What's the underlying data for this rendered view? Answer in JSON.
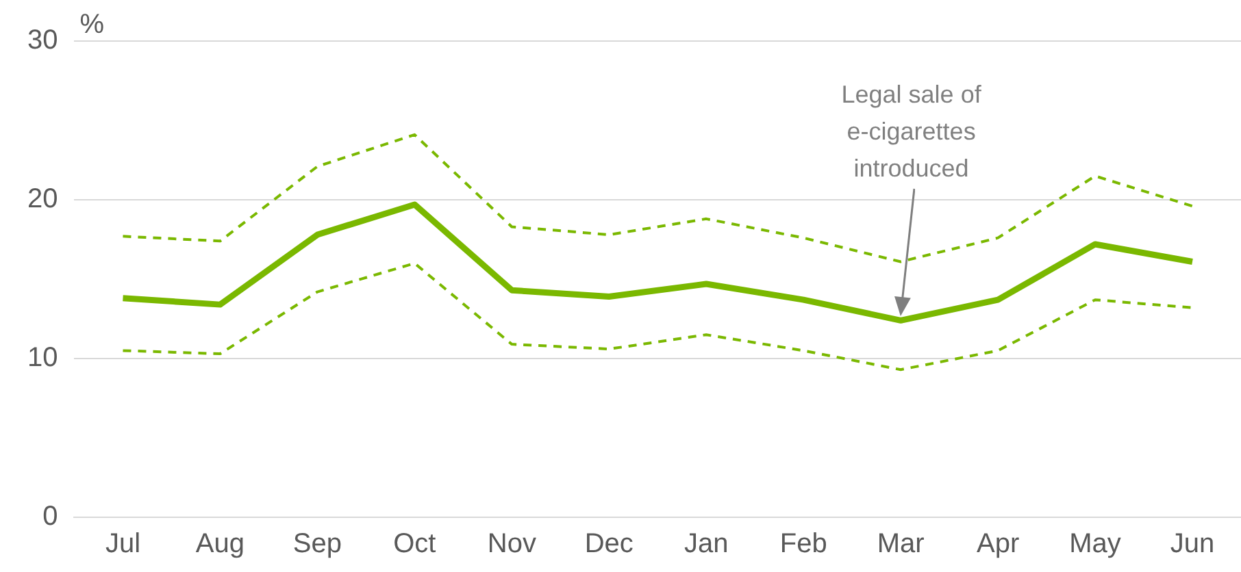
{
  "chart_data": {
    "type": "line",
    "ylabel": "%",
    "categories": [
      "Jul",
      "Aug",
      "Sep",
      "Oct",
      "Nov",
      "Dec",
      "Jan",
      "Feb",
      "Mar",
      "Apr",
      "May",
      "Jun"
    ],
    "series": [
      {
        "color": "#7ab800",
        "values": [
          13.8,
          13.4,
          17.8,
          19.7,
          14.3,
          13.9,
          14.7,
          13.7,
          12.4,
          13.7,
          17.2,
          16.1
        ]
      },
      {
        "color": "#7ab800",
        "line_style": "dashed",
        "values": [
          17.7,
          17.4,
          22.1,
          24.1,
          18.3,
          17.8,
          18.8,
          17.6,
          16.1,
          17.6,
          21.5,
          19.6
        ]
      },
      {
        "color": "#7ab800",
        "line_style": "dashed",
        "values": [
          10.5,
          10.3,
          14.2,
          16.0,
          10.9,
          10.6,
          11.5,
          10.5,
          9.3,
          10.5,
          13.7,
          13.2
        ]
      }
    ],
    "ylim": [
      0,
      30
    ],
    "yticks": [
      0,
      10,
      20,
      30
    ],
    "grid": "y",
    "legend": false,
    "marker": "none",
    "annotations": [
      "Legal sale of e-cigarettes introduced"
    ]
  }
}
